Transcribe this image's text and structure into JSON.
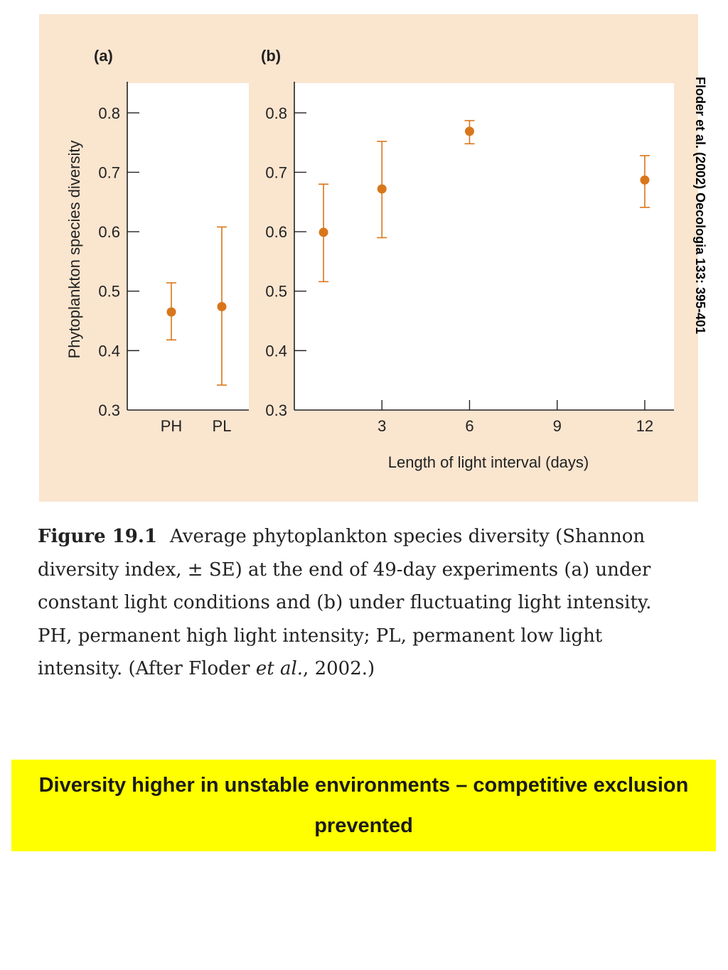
{
  "chart_data": [
    {
      "type": "scatter",
      "panel_label": "(a)",
      "ylabel": "Phytoplankton species diversity",
      "xlabel": "",
      "categories": [
        "PH",
        "PL"
      ],
      "values": [
        0.465,
        0.474
      ],
      "error_low": [
        0.418,
        0.342
      ],
      "error_high": [
        0.514,
        0.608
      ],
      "ylim": [
        0.3,
        0.85
      ],
      "yticks": [
        0.3,
        0.4,
        0.5,
        0.6,
        0.7,
        0.8
      ],
      "ytick_labels": [
        "0.3",
        "0.4",
        "0.5",
        "0.6",
        "0.7",
        "0.8"
      ],
      "grid": false,
      "color": "#d9761b"
    },
    {
      "type": "scatter",
      "panel_label": "(b)",
      "xlabel": "Length of light interval (days)",
      "ylabel": "",
      "x": [
        1,
        3,
        6,
        12
      ],
      "values": [
        0.599,
        0.672,
        0.769,
        0.687
      ],
      "error_low": [
        0.516,
        0.59,
        0.748,
        0.641
      ],
      "error_high": [
        0.68,
        0.752,
        0.787,
        0.728
      ],
      "xlim": [
        0,
        13
      ],
      "xticks": [
        3,
        6,
        9,
        12
      ],
      "xtick_labels": [
        "3",
        "6",
        "9",
        "12"
      ],
      "ylim": [
        0.3,
        0.85
      ],
      "yticks": [
        0.3,
        0.4,
        0.5,
        0.6,
        0.7,
        0.8
      ],
      "ytick_labels": [
        "0.3",
        "0.4",
        "0.5",
        "0.6",
        "0.7",
        "0.8"
      ],
      "grid": false,
      "color": "#d9761b"
    }
  ],
  "citation": "Floder et al. (2002) Oecologia 133: 395-401",
  "caption": {
    "label": "Figure 19.1",
    "text_1": "Average phytoplankton species diversity (Shannon diversity index, ± SE) at the end of 49-day experiments (a) under constant light conditions and (b) under fluctuating light intensity. PH, permanent high light intensity; PL, permanent low light intensity. (After Floder ",
    "text_italic": "et al.",
    "text_2": ", 2002.)"
  },
  "banner": {
    "text": "Diversity higher in unstable environments – competitive exclusion prevented"
  },
  "colors": {
    "panel_background": "#fae5cf",
    "banner_background": "#ffff00",
    "marker": "#d9761b"
  }
}
